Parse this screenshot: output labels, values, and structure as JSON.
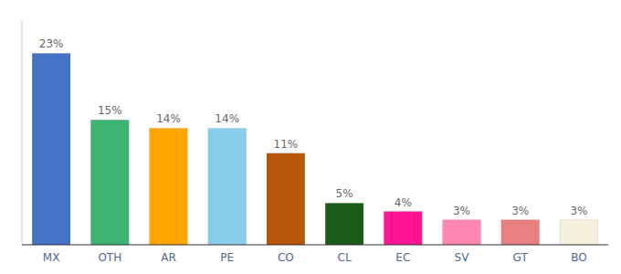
{
  "chart_data": {
    "type": "bar",
    "categories": [
      "MX",
      "OTH",
      "AR",
      "PE",
      "CO",
      "CL",
      "EC",
      "SV",
      "GT",
      "BO"
    ],
    "values": [
      23,
      15,
      14,
      14,
      11,
      5,
      4,
      3,
      3,
      3
    ],
    "value_labels": [
      "23%",
      "15%",
      "14%",
      "14%",
      "11%",
      "5%",
      "4%",
      "3%",
      "3%",
      "3%"
    ],
    "colors": [
      "#4472C4",
      "#3CB371",
      "#FFA500",
      "#87CEEB",
      "#B8560A",
      "#1A5C1A",
      "#FF1493",
      "#FF85B3",
      "#E88080",
      "#F5F0DC"
    ],
    "ylim": [
      0,
      27
    ],
    "data_labels": true,
    "tick_labels": "x"
  }
}
